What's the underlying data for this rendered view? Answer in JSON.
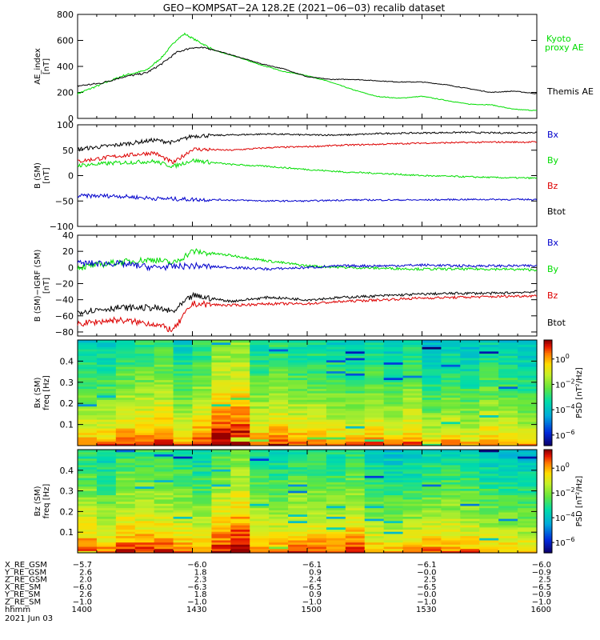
{
  "title": "GEO−KOMPSAT−2A 128.2E (2021−06−03) recalib dataset",
  "time_axis": {
    "range_hhmm": [
      "1400",
      "1600"
    ],
    "ticks": [
      "1400",
      "1430",
      "1500",
      "1530",
      "1600"
    ],
    "date": "2021 Jun 03"
  },
  "colors": {
    "black": "#000000",
    "green": "#00dd00",
    "blue": "#0000cc",
    "red": "#dd0000"
  },
  "chart_data": [
    {
      "type": "line",
      "panel": "ae",
      "ylabel": [
        "AE_index",
        "[nT]"
      ],
      "ylim": [
        0,
        800
      ],
      "yticks": [
        "0",
        "200",
        "400",
        "600",
        "800"
      ],
      "series": [
        {
          "name": "Kyoto proxy AE",
          "color": "#00dd00",
          "points": [
            [
              0,
              190
            ],
            [
              6,
              260
            ],
            [
              12,
              330
            ],
            [
              18,
              370
            ],
            [
              22,
              470
            ],
            [
              26,
              610
            ],
            [
              28,
              650
            ],
            [
              31,
              600
            ],
            [
              36,
              520
            ],
            [
              42,
              470
            ],
            [
              48,
              410
            ],
            [
              54,
              360
            ],
            [
              60,
              330
            ],
            [
              66,
              280
            ],
            [
              72,
              220
            ],
            [
              78,
              170
            ],
            [
              84,
              155
            ],
            [
              90,
              170
            ],
            [
              96,
              140
            ],
            [
              102,
              110
            ],
            [
              108,
              105
            ],
            [
              114,
              70
            ],
            [
              120,
              60
            ]
          ]
        },
        {
          "name": "Themis AE",
          "color": "#000000",
          "points": [
            [
              0,
              250
            ],
            [
              6,
              270
            ],
            [
              12,
              320
            ],
            [
              18,
              350
            ],
            [
              22,
              420
            ],
            [
              26,
              510
            ],
            [
              30,
              545
            ],
            [
              34,
              540
            ],
            [
              40,
              490
            ],
            [
              48,
              420
            ],
            [
              54,
              380
            ],
            [
              60,
              320
            ],
            [
              66,
              300
            ],
            [
              72,
              300
            ],
            [
              78,
              290
            ],
            [
              84,
              280
            ],
            [
              90,
              280
            ],
            [
              96,
              260
            ],
            [
              102,
              230
            ],
            [
              108,
              200
            ],
            [
              114,
              210
            ],
            [
              120,
              190
            ]
          ]
        }
      ],
      "legend": {
        "kyoto_line1": "Kyoto",
        "kyoto_line2": "proxy AE",
        "themis": "Themis AE"
      }
    },
    {
      "type": "line",
      "panel": "b_sm",
      "ylabel": [
        "B (SM)",
        "[nT]"
      ],
      "ylim": [
        -100,
        100
      ],
      "yticks": [
        "−100",
        "−50",
        "0",
        "50",
        "100"
      ],
      "series": [
        {
          "name": "Btot",
          "color": "#000000",
          "points": [
            [
              0,
              52
            ],
            [
              10,
              60
            ],
            [
              20,
              70
            ],
            [
              25,
              65
            ],
            [
              30,
              78
            ],
            [
              40,
              80
            ],
            [
              50,
              82
            ],
            [
              60,
              80
            ],
            [
              70,
              80
            ],
            [
              80,
              83
            ],
            [
              90,
              84
            ],
            [
              100,
              85
            ],
            [
              110,
              84
            ],
            [
              120,
              85
            ]
          ]
        },
        {
          "name": "Bz",
          "color": "#dd0000",
          "points": [
            [
              0,
              28
            ],
            [
              10,
              38
            ],
            [
              20,
              45
            ],
            [
              25,
              25
            ],
            [
              30,
              52
            ],
            [
              40,
              50
            ],
            [
              50,
              55
            ],
            [
              60,
              57
            ],
            [
              70,
              60
            ],
            [
              80,
              62
            ],
            [
              90,
              64
            ],
            [
              100,
              65
            ],
            [
              110,
              66
            ],
            [
              120,
              66
            ]
          ]
        },
        {
          "name": "By",
          "color": "#00dd00",
          "points": [
            [
              0,
              20
            ],
            [
              10,
              25
            ],
            [
              20,
              28
            ],
            [
              25,
              18
            ],
            [
              30,
              30
            ],
            [
              40,
              22
            ],
            [
              50,
              18
            ],
            [
              60,
              12
            ],
            [
              70,
              7
            ],
            [
              80,
              4
            ],
            [
              90,
              0
            ],
            [
              100,
              -2
            ],
            [
              110,
              -4
            ],
            [
              120,
              -5
            ]
          ]
        },
        {
          "name": "Bx",
          "color": "#0000cc",
          "points": [
            [
              0,
              -40
            ],
            [
              10,
              -40
            ],
            [
              20,
              -45
            ],
            [
              30,
              -47
            ],
            [
              40,
              -48
            ],
            [
              50,
              -50
            ],
            [
              60,
              -50
            ],
            [
              70,
              -48
            ],
            [
              80,
              -48
            ],
            [
              90,
              -48
            ],
            [
              100,
              -47
            ],
            [
              110,
              -47
            ],
            [
              120,
              -47
            ]
          ]
        }
      ],
      "legend": [
        "Bx",
        "By",
        "Bz",
        "Btot"
      ]
    },
    {
      "type": "line",
      "panel": "b_minus_igrf",
      "ylabel": [
        "B (SM)−IGRF (SM)",
        "[nT]"
      ],
      "ylim": [
        -85,
        40
      ],
      "yticks": [
        "−80",
        "−60",
        "−40",
        "−20",
        "0",
        "20",
        "40"
      ],
      "series": [
        {
          "name": "By",
          "color": "#00dd00",
          "points": [
            [
              0,
              0
            ],
            [
              10,
              6
            ],
            [
              20,
              10
            ],
            [
              25,
              5
            ],
            [
              30,
              20
            ],
            [
              40,
              15
            ],
            [
              50,
              8
            ],
            [
              60,
              2
            ],
            [
              70,
              0
            ],
            [
              80,
              -1
            ],
            [
              90,
              -2
            ],
            [
              100,
              -2
            ],
            [
              110,
              -2
            ],
            [
              120,
              -3
            ]
          ]
        },
        {
          "name": "Bx",
          "color": "#0000cc",
          "points": [
            [
              0,
              5
            ],
            [
              10,
              5
            ],
            [
              20,
              0
            ],
            [
              30,
              2
            ],
            [
              40,
              0
            ],
            [
              50,
              -2
            ],
            [
              60,
              0
            ],
            [
              70,
              2
            ],
            [
              80,
              2
            ],
            [
              90,
              3
            ],
            [
              100,
              2
            ],
            [
              110,
              2
            ],
            [
              120,
              2
            ]
          ]
        },
        {
          "name": "Btot",
          "color": "#000000",
          "points": [
            [
              0,
              -55
            ],
            [
              10,
              -50
            ],
            [
              20,
              -50
            ],
            [
              25,
              -55
            ],
            [
              30,
              -35
            ],
            [
              40,
              -42
            ],
            [
              50,
              -37
            ],
            [
              60,
              -40
            ],
            [
              70,
              -37
            ],
            [
              80,
              -35
            ],
            [
              90,
              -33
            ],
            [
              100,
              -32
            ],
            [
              110,
              -32
            ],
            [
              120,
              -30
            ]
          ]
        },
        {
          "name": "Bz",
          "color": "#dd0000",
          "points": [
            [
              0,
              -70
            ],
            [
              10,
              -65
            ],
            [
              20,
              -70
            ],
            [
              25,
              -78
            ],
            [
              30,
              -45
            ],
            [
              40,
              -47
            ],
            [
              50,
              -45
            ],
            [
              60,
              -45
            ],
            [
              70,
              -42
            ],
            [
              80,
              -40
            ],
            [
              90,
              -38
            ],
            [
              100,
              -37
            ],
            [
              110,
              -36
            ],
            [
              120,
              -35
            ]
          ]
        }
      ],
      "legend": [
        "Bx",
        "By",
        "Bz",
        "Btot"
      ]
    },
    {
      "type": "heatmap",
      "panel": "bx_spec",
      "ylabel": [
        "Bx (SM)",
        "freq [Hz]"
      ],
      "ylim": [
        0,
        0.5
      ],
      "yticks": [
        "0.1",
        "0.2",
        "0.3",
        "0.4"
      ],
      "colorbar": {
        "ticks": [
          "10",
          "10",
          "10",
          "10"
        ],
        "exps": [
          "0",
          "−2",
          "−4",
          "−6"
        ],
        "label": "PSD [nT²/Hz]"
      }
    },
    {
      "type": "heatmap",
      "panel": "bz_spec",
      "ylabel": [
        "Bz (SM)",
        "freq [Hz]"
      ],
      "ylim": [
        0,
        0.5
      ],
      "yticks": [
        "0.1",
        "0.2",
        "0.3",
        "0.4"
      ],
      "colorbar": {
        "ticks": [
          "10",
          "10",
          "10",
          "10"
        ],
        "exps": [
          "0",
          "−2",
          "−4",
          "−6"
        ],
        "label": "PSD [nT²/Hz]"
      }
    }
  ],
  "ephemeris": {
    "labels": [
      "X_RE_GSM",
      "Y_RE_GSM",
      "Z_RE_GSM",
      "X_RE_SM",
      "Y_RE_SM",
      "Z_RE_SM",
      "hhmm"
    ],
    "columns": [
      [
        "−5.7",
        "2.6",
        "2.0",
        "−6.0",
        "2.6",
        "−1.0",
        "1400"
      ],
      [
        "−6.0",
        "1.8",
        "2.3",
        "−6.3",
        "1.8",
        "−1.0",
        "1430"
      ],
      [
        "−6.1",
        "0.9",
        "2.4",
        "−6.5",
        "0.9",
        "−1.0",
        "1500"
      ],
      [
        "−6.1",
        "−0.0",
        "2.5",
        "−6.5",
        "−0.0",
        "−1.0",
        "1530"
      ],
      [
        "−6.0",
        "−0.9",
        "2.5",
        "−6.5",
        "−0.9",
        "−1.0",
        "1600"
      ]
    ],
    "date": "2021 Jun 03"
  }
}
